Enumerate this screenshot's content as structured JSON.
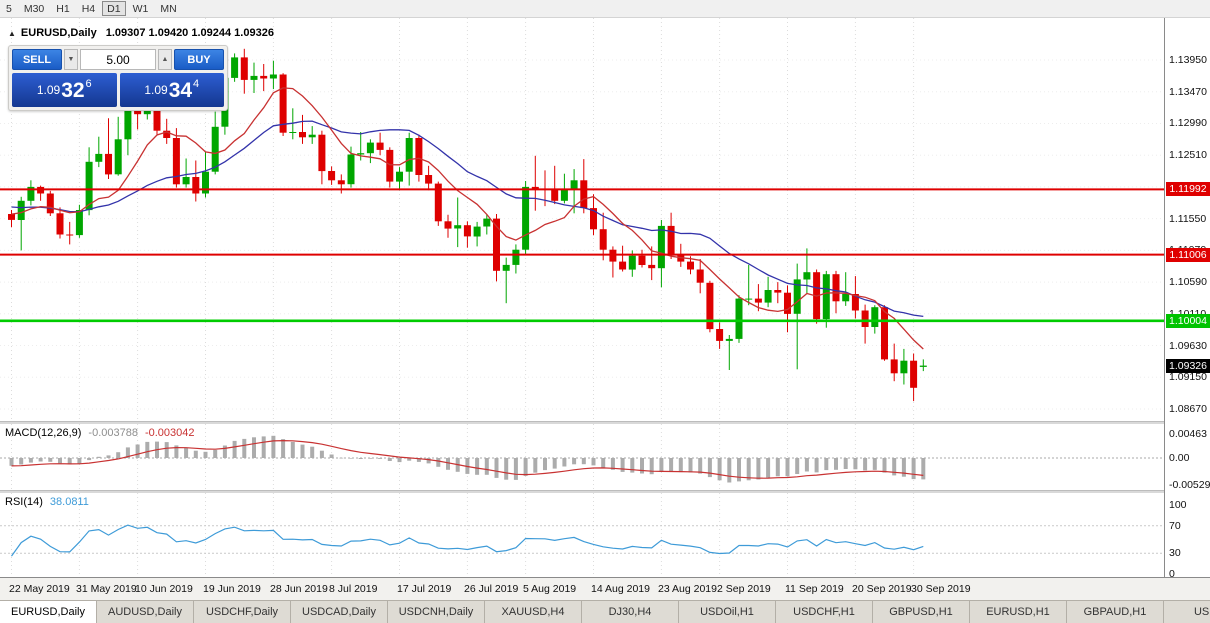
{
  "toolbar": {
    "timeframes": [
      {
        "label": "5",
        "active": false
      },
      {
        "label": "M30",
        "active": false
      },
      {
        "label": "H1",
        "active": false
      },
      {
        "label": "H4",
        "active": false
      },
      {
        "label": "D1",
        "active": true
      },
      {
        "label": "W1",
        "active": false
      },
      {
        "label": "MN",
        "active": false
      }
    ]
  },
  "chart": {
    "collapse_icon": "▲",
    "title": "EURUSD,Daily",
    "ohlc": "1.09307 1.09420 1.09244 1.09326"
  },
  "trade_panel": {
    "sell_label": "SELL",
    "buy_label": "BUY",
    "volume": "5.00",
    "down_icon": "▼",
    "up_icon": "▲",
    "sell_price": {
      "main": "1.09",
      "big": "32",
      "sup": "6"
    },
    "buy_price": {
      "main": "1.09",
      "big": "34",
      "sup": "4"
    }
  },
  "price_axis": {
    "labels": [
      "1.13950",
      "1.13470",
      "1.12990",
      "1.12510",
      "1.12030",
      "1.11550",
      "1.11070",
      "1.10590",
      "1.10110",
      "1.09630",
      "1.09150",
      "1.08670"
    ],
    "markers": [
      {
        "text": "1.11992",
        "price": 1.11992,
        "bg": "#df0000"
      },
      {
        "text": "1.11006",
        "price": 1.11006,
        "bg": "#df0000"
      },
      {
        "text": "1.10004",
        "price": 1.10004,
        "bg": "#00c300"
      },
      {
        "text": "1.09326",
        "price": 1.09326,
        "bg": "#000000"
      }
    ]
  },
  "levels": [
    {
      "price": 1.11992,
      "color": "#df0000",
      "width": 2
    },
    {
      "price": 1.11006,
      "color": "#df0000",
      "width": 2
    },
    {
      "price": 1.10004,
      "color": "#00cc00",
      "width": 2.6
    }
  ],
  "date_axis": {
    "ticks": [
      [
        0,
        "22 May 2019"
      ],
      [
        7,
        "31 May 2019"
      ],
      [
        13,
        "10 Jun 2019"
      ],
      [
        20,
        "19 Jun 2019"
      ],
      [
        27,
        "28 Jun 2019"
      ],
      [
        33,
        "8 Jul 2019"
      ],
      [
        40,
        "17 Jul 2019"
      ],
      [
        47,
        "26 Jul 2019"
      ],
      [
        53,
        "5 Aug 2019"
      ],
      [
        60,
        "14 Aug 2019"
      ],
      [
        67,
        "23 Aug 2019"
      ],
      [
        73,
        "2 Sep 2019"
      ],
      [
        80,
        "11 Sep 2019"
      ],
      [
        87,
        "20 Sep 2019"
      ],
      [
        93,
        "30 Sep 2019"
      ]
    ]
  },
  "indicators": {
    "macd": {
      "label": "MACD(12,26,9)",
      "value1": "-0.003788",
      "value2": "-0.003042",
      "axis": [
        "0.00463",
        "0.00",
        "-0.00529"
      ]
    },
    "rsi": {
      "label": "RSI(14)",
      "value": "38.0811",
      "axis": [
        "100",
        "70",
        "30",
        "0"
      ],
      "levels": [
        70,
        30
      ]
    }
  },
  "tabs": [
    {
      "label": "EURUSD,Daily",
      "active": true
    },
    {
      "label": "AUDUSD,Daily",
      "active": false
    },
    {
      "label": "USDCHF,Daily",
      "active": false
    },
    {
      "label": "USDCAD,Daily",
      "active": false
    },
    {
      "label": "USDCNH,Daily",
      "active": false
    },
    {
      "label": "XAUUSD,H4",
      "active": false
    },
    {
      "label": "DJ30,H4",
      "active": false
    },
    {
      "label": "USDOil,H1",
      "active": false
    },
    {
      "label": "USDCHF,H1",
      "active": false
    },
    {
      "label": "GBPUSD,H1",
      "active": false
    },
    {
      "label": "EURUSD,H1",
      "active": false
    },
    {
      "label": "GBPAUD,H1",
      "active": false
    },
    {
      "label": "USDJP",
      "active": false
    }
  ],
  "colors": {
    "bull": "#00a600",
    "bear": "#de0000",
    "ma_slow": "#3333aa",
    "ma_fast": "#c83232",
    "macd_hist": "#acacac",
    "macd_signal": "#c83232",
    "rsi_line": "#3e9bd8",
    "grid": "#dcdcdc"
  },
  "chart_data": {
    "type": "candlestick",
    "symbol": "EURUSD",
    "timeframe": "Daily",
    "ohlc_current": {
      "open": 1.09307,
      "high": 1.0942,
      "low": 1.09244,
      "close": 1.09326
    },
    "overlays": [
      {
        "type": "sma",
        "period": 20,
        "color": "#3333aa"
      },
      {
        "type": "sma",
        "period": 8,
        "color": "#c83232"
      }
    ],
    "history_closes": [
      1.1238,
      1.123,
      1.1222,
      1.1215,
      1.1208,
      1.1212,
      1.1205,
      1.1198,
      1.119,
      1.1196,
      1.1188,
      1.118,
      1.1184,
      1.1176,
      1.117,
      1.1175,
      1.1168,
      1.1162,
      1.117,
      1.1163,
      1.1158,
      1.1165,
      1.1172,
      1.1166,
      1.116,
      1.1157
    ],
    "candles": [
      [
        1.1162,
        1.1168,
        1.1142,
        1.1153
      ],
      [
        1.1153,
        1.1188,
        1.1107,
        1.1182
      ],
      [
        1.1182,
        1.1213,
        1.1175,
        1.1203
      ],
      [
        1.1203,
        1.1205,
        1.1182,
        1.1193
      ],
      [
        1.1193,
        1.1197,
        1.1159,
        1.1163
      ],
      [
        1.1163,
        1.1172,
        1.1125,
        1.1131
      ],
      [
        1.1131,
        1.115,
        1.1116,
        1.113
      ],
      [
        1.113,
        1.1176,
        1.1126,
        1.1168
      ],
      [
        1.1168,
        1.1263,
        1.116,
        1.1241
      ],
      [
        1.1241,
        1.1279,
        1.1233,
        1.1253
      ],
      [
        1.1253,
        1.1307,
        1.1215,
        1.1222
      ],
      [
        1.1222,
        1.1309,
        1.122,
        1.1275
      ],
      [
        1.1275,
        1.1348,
        1.1251,
        1.1334
      ],
      [
        1.1334,
        1.1345,
        1.129,
        1.1313
      ],
      [
        1.1313,
        1.1338,
        1.1305,
        1.1326
      ],
      [
        1.1326,
        1.1344,
        1.1281,
        1.1288
      ],
      [
        1.1288,
        1.1306,
        1.1268,
        1.1277
      ],
      [
        1.1277,
        1.1292,
        1.1202,
        1.1207
      ],
      [
        1.1207,
        1.1246,
        1.1202,
        1.1218
      ],
      [
        1.1218,
        1.1243,
        1.1181,
        1.1193
      ],
      [
        1.1193,
        1.1255,
        1.1187,
        1.1226
      ],
      [
        1.1226,
        1.1317,
        1.1222,
        1.1294
      ],
      [
        1.1294,
        1.1378,
        1.1282,
        1.1368
      ],
      [
        1.1368,
        1.1405,
        1.1362,
        1.1399
      ],
      [
        1.1399,
        1.1412,
        1.1344,
        1.1365
      ],
      [
        1.1365,
        1.1391,
        1.1345,
        1.1371
      ],
      [
        1.1371,
        1.1389,
        1.1348,
        1.1367
      ],
      [
        1.1367,
        1.1394,
        1.1351,
        1.1373
      ],
      [
        1.1373,
        1.1375,
        1.128,
        1.1285
      ],
      [
        1.1285,
        1.1322,
        1.1275,
        1.1286
      ],
      [
        1.1286,
        1.1312,
        1.1268,
        1.1278
      ],
      [
        1.1278,
        1.1295,
        1.1268,
        1.1282
      ],
      [
        1.1282,
        1.1288,
        1.1207,
        1.1227
      ],
      [
        1.1227,
        1.1234,
        1.1206,
        1.1213
      ],
      [
        1.1213,
        1.1222,
        1.1193,
        1.1207
      ],
      [
        1.1207,
        1.1264,
        1.1202,
        1.1252
      ],
      [
        1.1252,
        1.1286,
        1.1243,
        1.1254
      ],
      [
        1.1254,
        1.1275,
        1.1239,
        1.127
      ],
      [
        1.127,
        1.1285,
        1.1251,
        1.1259
      ],
      [
        1.1259,
        1.1263,
        1.1202,
        1.1211
      ],
      [
        1.1211,
        1.1233,
        1.1198,
        1.1226
      ],
      [
        1.1226,
        1.1285,
        1.1205,
        1.1277
      ],
      [
        1.1277,
        1.1282,
        1.1211,
        1.1221
      ],
      [
        1.1221,
        1.1235,
        1.1198,
        1.1208
      ],
      [
        1.1208,
        1.1211,
        1.1144,
        1.1151
      ],
      [
        1.1151,
        1.1161,
        1.1126,
        1.114
      ],
      [
        1.114,
        1.1187,
        1.1112,
        1.1145
      ],
      [
        1.1145,
        1.1151,
        1.1111,
        1.1128
      ],
      [
        1.1128,
        1.115,
        1.1113,
        1.1143
      ],
      [
        1.1143,
        1.1162,
        1.1131,
        1.1155
      ],
      [
        1.1155,
        1.1162,
        1.106,
        1.1076
      ],
      [
        1.1076,
        1.1096,
        1.1027,
        1.1085
      ],
      [
        1.1085,
        1.1116,
        1.1072,
        1.1108
      ],
      [
        1.1108,
        1.1212,
        1.1101,
        1.1203
      ],
      [
        1.1203,
        1.125,
        1.1167,
        1.12
      ],
      [
        1.12,
        1.1228,
        1.1174,
        1.1199
      ],
      [
        1.1199,
        1.1235,
        1.1177,
        1.1182
      ],
      [
        1.1182,
        1.1223,
        1.1178,
        1.12
      ],
      [
        1.12,
        1.123,
        1.1163,
        1.1213
      ],
      [
        1.1213,
        1.1245,
        1.1163,
        1.1171
      ],
      [
        1.1171,
        1.1192,
        1.113,
        1.1139
      ],
      [
        1.1139,
        1.1164,
        1.1092,
        1.1108
      ],
      [
        1.1108,
        1.1113,
        1.1066,
        1.109
      ],
      [
        1.109,
        1.1114,
        1.1075,
        1.1078
      ],
      [
        1.1078,
        1.1107,
        1.1067,
        1.1099
      ],
      [
        1.1099,
        1.1108,
        1.1081,
        1.1085
      ],
      [
        1.1085,
        1.1113,
        1.1062,
        1.108
      ],
      [
        1.108,
        1.1153,
        1.1051,
        1.1144
      ],
      [
        1.1144,
        1.1164,
        1.1094,
        1.1101
      ],
      [
        1.1101,
        1.1117,
        1.1082,
        1.109
      ],
      [
        1.109,
        1.1098,
        1.1071,
        1.1078
      ],
      [
        1.1078,
        1.1094,
        1.1042,
        1.1058
      ],
      [
        1.1058,
        1.1061,
        1.0983,
        1.0988
      ],
      [
        1.0988,
        1.0998,
        1.0958,
        1.097
      ],
      [
        1.097,
        1.0979,
        1.0926,
        1.0973
      ],
      [
        1.0973,
        1.1039,
        1.0967,
        1.1034
      ],
      [
        1.1034,
        1.1085,
        1.1024,
        1.1034
      ],
      [
        1.1034,
        1.1056,
        1.1015,
        1.1028
      ],
      [
        1.1028,
        1.1067,
        1.1021,
        1.1047
      ],
      [
        1.1047,
        1.1059,
        1.1027,
        1.1043
      ],
      [
        1.1043,
        1.1054,
        1.0983,
        1.1011
      ],
      [
        1.1011,
        1.1087,
        1.0927,
        1.1063
      ],
      [
        1.1063,
        1.111,
        1.1042,
        1.1074
      ],
      [
        1.1074,
        1.1078,
        1.0996,
        1.1003
      ],
      [
        1.1003,
        1.1076,
        1.099,
        1.1071
      ],
      [
        1.1071,
        1.1076,
        1.1012,
        1.103
      ],
      [
        1.103,
        1.1074,
        1.1023,
        1.1041
      ],
      [
        1.1041,
        1.1068,
        1.1004,
        1.1016
      ],
      [
        1.1016,
        1.1025,
        1.0966,
        1.0991
      ],
      [
        1.0991,
        1.1024,
        1.0981,
        1.1021
      ],
      [
        1.1021,
        1.1024,
        1.094,
        1.0942
      ],
      [
        1.0942,
        1.0966,
        1.0909,
        1.0921
      ],
      [
        1.0921,
        1.0958,
        1.0904,
        1.094
      ],
      [
        1.094,
        1.0951,
        1.0879,
        1.0899
      ],
      [
        1.09307,
        1.0942,
        1.09244,
        1.09326
      ]
    ]
  }
}
